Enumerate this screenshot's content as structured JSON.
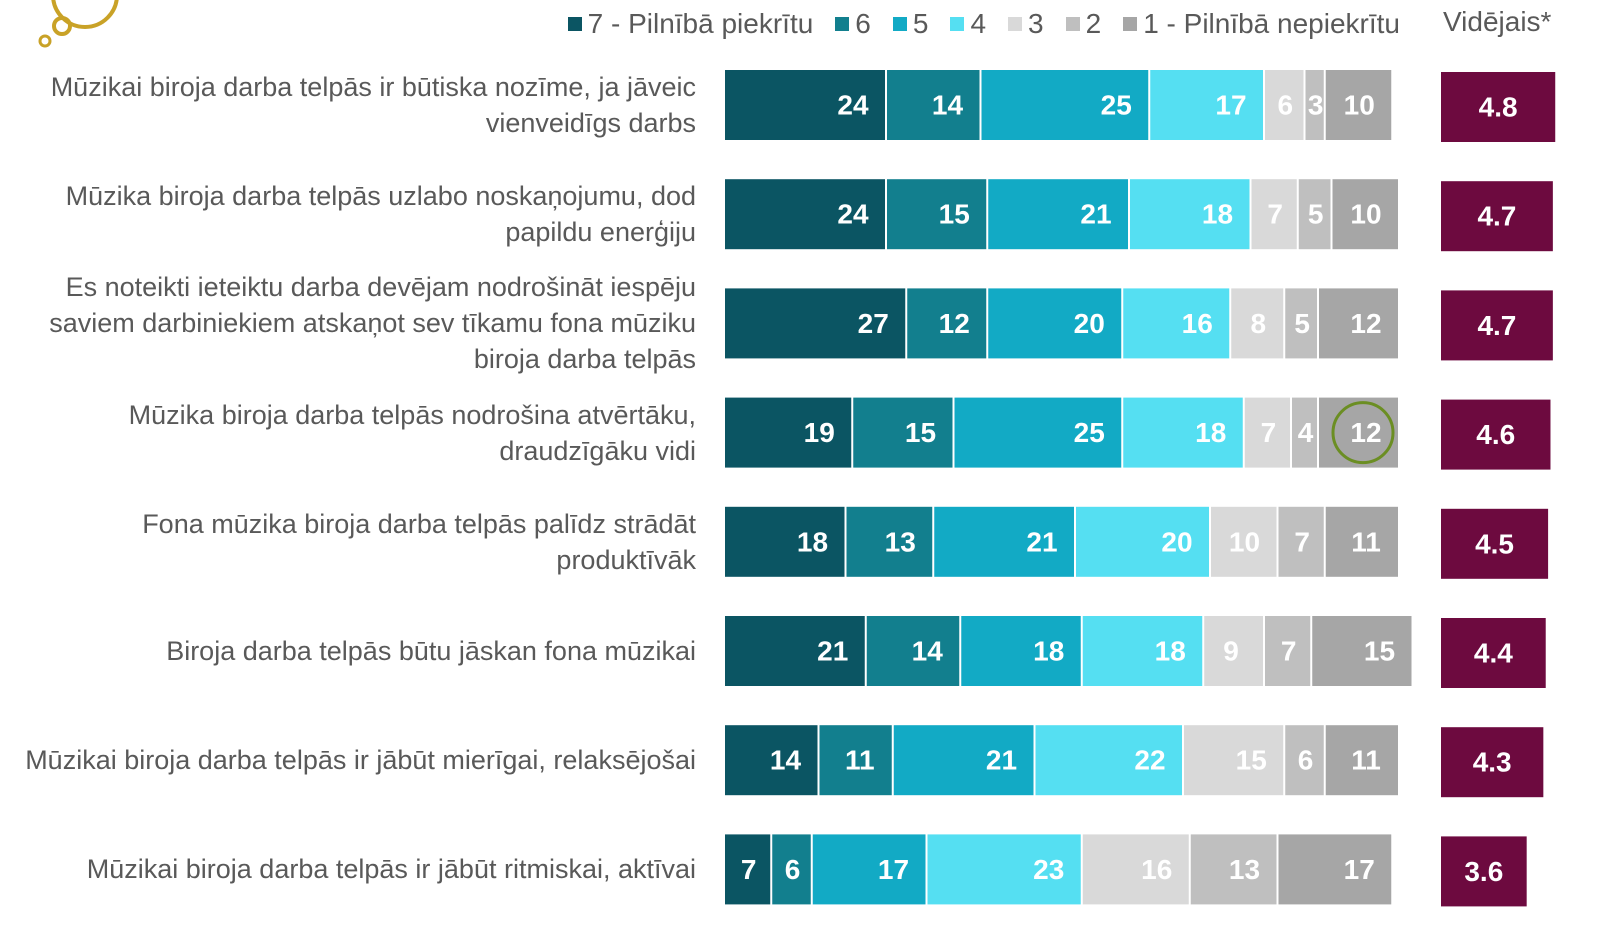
{
  "chart_data": {
    "type": "stacked-bar",
    "orientation": "horizontal",
    "xlim": [
      0,
      100
    ],
    "categories": [
      "Mūzikai biroja darba telpās ir būtiska nozīme, ja jāveic vienveidīgs darbs",
      "Mūzika biroja darba telpās uzlabo noskaņojumu, dod papildu enerģiju",
      "Es noteikti ieteiktu darba devējam nodrošināt iespēju saviem darbiniekiem atskaņot sev tīkamu fona mūziku biroja darba telpās",
      "Mūzika biroja darba telpās nodrošina atvērtāku, draudzīgāku vidi",
      "Fona mūzika biroja darba telpās palīdz strādāt produktīvāk",
      "Biroja darba telpās būtu jāskan fona mūzikai",
      "Mūzikai biroja darba telpās ir jābūt mierīgai, relaksējošai",
      "Mūzikai biroja darba telpās ir jābūt ritmiskai, aktīvai"
    ],
    "series": [
      {
        "name": "7 - Pilnībā piekrītu",
        "color": "#0b5563",
        "values": [
          24,
          24,
          27,
          19,
          18,
          21,
          14,
          7
        ]
      },
      {
        "name": "6",
        "color": "#127f8e",
        "values": [
          14,
          15,
          12,
          15,
          13,
          14,
          11,
          6
        ]
      },
      {
        "name": "5",
        "color": "#12aac5",
        "values": [
          25,
          21,
          20,
          25,
          21,
          18,
          21,
          17
        ]
      },
      {
        "name": "4",
        "color": "#55dff2",
        "values": [
          17,
          18,
          16,
          18,
          20,
          18,
          22,
          23
        ]
      },
      {
        "name": "3",
        "color": "#d9d9d9",
        "values": [
          6,
          7,
          8,
          7,
          10,
          9,
          15,
          16
        ]
      },
      {
        "name": "2",
        "color": "#bfbfbf",
        "values": [
          3,
          5,
          5,
          4,
          7,
          7,
          6,
          13
        ]
      },
      {
        "name": "1 - Pilnībā nepiekrītu",
        "color": "#a6a6a6",
        "values": [
          10,
          10,
          12,
          12,
          11,
          15,
          11,
          17
        ]
      }
    ],
    "average": {
      "title": "Vidējais*",
      "color": "#6d0a3f",
      "values": [
        4.8,
        4.7,
        4.7,
        4.6,
        4.5,
        4.4,
        4.3,
        3.6
      ]
    }
  }
}
